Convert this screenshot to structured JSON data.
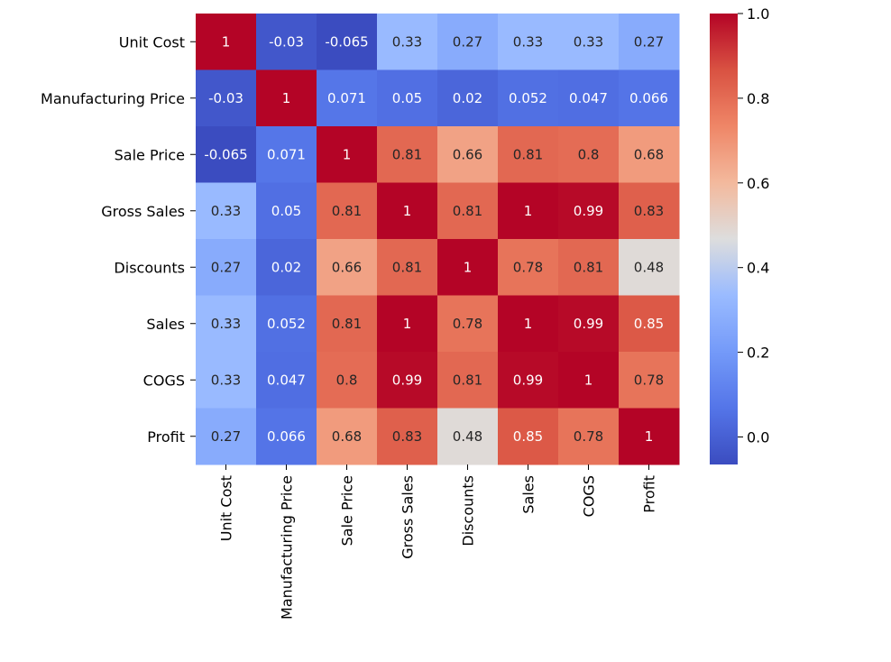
{
  "chart_data": {
    "type": "heatmap",
    "title": "",
    "xlabel": "",
    "ylabel": "",
    "rows": [
      "Unit Cost",
      "Manufacturing Price",
      "Sale Price",
      "Gross Sales",
      "Discounts",
      "Sales",
      "COGS",
      "Profit"
    ],
    "columns": [
      "Unit Cost",
      "Manufacturing Price",
      "Sale Price",
      "Gross Sales",
      "Discounts",
      "Sales",
      "COGS",
      "Profit"
    ],
    "values": [
      [
        1,
        -0.03,
        -0.065,
        0.33,
        0.27,
        0.33,
        0.33,
        0.27
      ],
      [
        -0.03,
        1,
        0.071,
        0.05,
        0.02,
        0.052,
        0.047,
        0.066
      ],
      [
        -0.065,
        0.071,
        1,
        0.81,
        0.66,
        0.81,
        0.8,
        0.68
      ],
      [
        0.33,
        0.05,
        0.81,
        1,
        0.81,
        1,
        0.99,
        0.83
      ],
      [
        0.27,
        0.02,
        0.66,
        0.81,
        1,
        0.78,
        0.81,
        0.48
      ],
      [
        0.33,
        0.052,
        0.81,
        1,
        0.78,
        1,
        0.99,
        0.85
      ],
      [
        0.33,
        0.047,
        0.8,
        0.99,
        0.81,
        0.99,
        1,
        0.78
      ],
      [
        0.27,
        0.066,
        0.68,
        0.83,
        0.48,
        0.85,
        0.78,
        1
      ]
    ],
    "colormap": "coolwarm",
    "color_range": [
      -0.065,
      1
    ],
    "annotations": true,
    "colorbar": {
      "position": "right",
      "ticks": [
        0.0,
        0.2,
        0.4,
        0.6,
        0.8,
        1.0
      ],
      "tick_labels": [
        "0.0",
        "0.2",
        "0.4",
        "0.6",
        "0.8",
        "1.0"
      ]
    },
    "x_tick_rotation": "vertical",
    "grid": false
  }
}
